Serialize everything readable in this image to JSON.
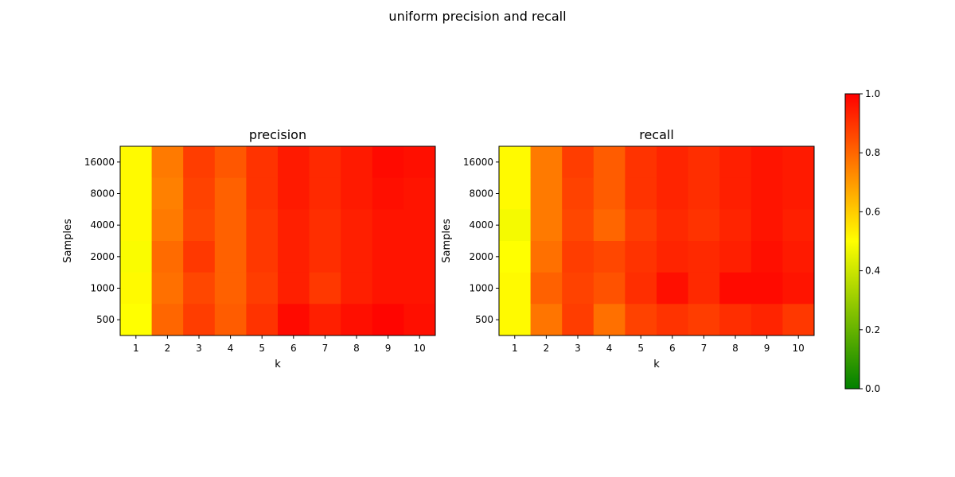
{
  "figure": {
    "suptitle": "uniform precision and recall"
  },
  "colormap": {
    "name": "green-yellow-red",
    "stops": [
      "#008000",
      "#ffff00",
      "#ff0000"
    ],
    "vmin": 0.0,
    "vmax": 1.0,
    "ticks": [
      "0.0",
      "0.2",
      "0.4",
      "0.6",
      "0.8",
      "1.0"
    ]
  },
  "chart_data": [
    {
      "type": "heatmap",
      "title": "precision",
      "xlabel": "k",
      "ylabel": "Samples",
      "x_categories": [
        "1",
        "2",
        "3",
        "4",
        "5",
        "6",
        "7",
        "8",
        "9",
        "10"
      ],
      "y_categories": [
        "16000",
        "8000",
        "4000",
        "2000",
        "1000",
        "500"
      ],
      "values": [
        [
          0.51,
          0.76,
          0.88,
          0.83,
          0.9,
          0.95,
          0.92,
          0.95,
          0.98,
          0.97
        ],
        [
          0.51,
          0.75,
          0.87,
          0.81,
          0.9,
          0.95,
          0.92,
          0.95,
          0.97,
          0.96
        ],
        [
          0.51,
          0.76,
          0.86,
          0.81,
          0.89,
          0.94,
          0.91,
          0.94,
          0.96,
          0.96
        ],
        [
          0.49,
          0.79,
          0.89,
          0.81,
          0.89,
          0.94,
          0.91,
          0.94,
          0.96,
          0.96
        ],
        [
          0.51,
          0.78,
          0.86,
          0.81,
          0.88,
          0.94,
          0.89,
          0.94,
          0.96,
          0.96
        ],
        [
          0.5,
          0.8,
          0.88,
          0.82,
          0.9,
          0.98,
          0.94,
          0.97,
          0.99,
          0.97
        ]
      ]
    },
    {
      "type": "heatmap",
      "title": "recall",
      "xlabel": "k",
      "ylabel": "Samples",
      "x_categories": [
        "1",
        "2",
        "3",
        "4",
        "5",
        "6",
        "7",
        "8",
        "9",
        "10"
      ],
      "y_categories": [
        "16000",
        "8000",
        "4000",
        "2000",
        "1000",
        "500"
      ],
      "values": [
        [
          0.51,
          0.76,
          0.88,
          0.82,
          0.9,
          0.93,
          0.91,
          0.94,
          0.96,
          0.95
        ],
        [
          0.51,
          0.76,
          0.87,
          0.82,
          0.9,
          0.93,
          0.91,
          0.94,
          0.96,
          0.95
        ],
        [
          0.48,
          0.76,
          0.86,
          0.8,
          0.88,
          0.92,
          0.9,
          0.93,
          0.96,
          0.94
        ],
        [
          0.5,
          0.78,
          0.88,
          0.86,
          0.9,
          0.93,
          0.92,
          0.94,
          0.97,
          0.95
        ],
        [
          0.51,
          0.81,
          0.87,
          0.84,
          0.91,
          0.97,
          0.92,
          0.98,
          0.98,
          0.96
        ],
        [
          0.51,
          0.77,
          0.88,
          0.78,
          0.87,
          0.9,
          0.88,
          0.91,
          0.93,
          0.89
        ]
      ]
    }
  ]
}
